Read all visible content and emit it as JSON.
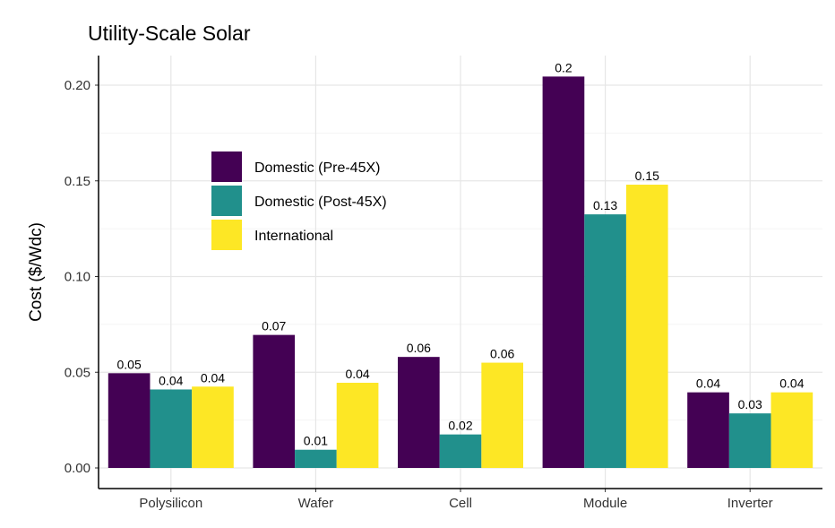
{
  "chart_data": {
    "type": "bar",
    "title": "Utility-Scale Solar",
    "xlabel": "",
    "ylabel": "Cost ($/Wdc)",
    "categories": [
      "Polysilicon",
      "Wafer",
      "Cell",
      "Module",
      "Inverter"
    ],
    "ylim": [
      0,
      0.215
    ],
    "yticks": [
      "0.00",
      "0.05",
      "0.10",
      "0.15",
      "0.20"
    ],
    "grid": true,
    "legend_position": "top-left",
    "series": [
      {
        "name": "Domestic (Pre-45X)",
        "color": "#440154",
        "values": [
          0.0495,
          0.0695,
          0.058,
          0.2045,
          0.0395
        ],
        "labels": [
          "0.05",
          "0.07",
          "0.06",
          "0.2",
          "0.04"
        ]
      },
      {
        "name": "Domestic (Post-45X)",
        "color": "#21908C",
        "values": [
          0.041,
          0.0095,
          0.0175,
          0.1325,
          0.0285
        ],
        "labels": [
          "0.04",
          "0.01",
          "0.02",
          "0.13",
          "0.03"
        ]
      },
      {
        "name": "International",
        "color": "#FDE725",
        "values": [
          0.0425,
          0.0445,
          0.055,
          0.148,
          0.0395
        ],
        "labels": [
          "0.04",
          "0.04",
          "0.06",
          "0.15",
          "0.04"
        ]
      }
    ]
  }
}
